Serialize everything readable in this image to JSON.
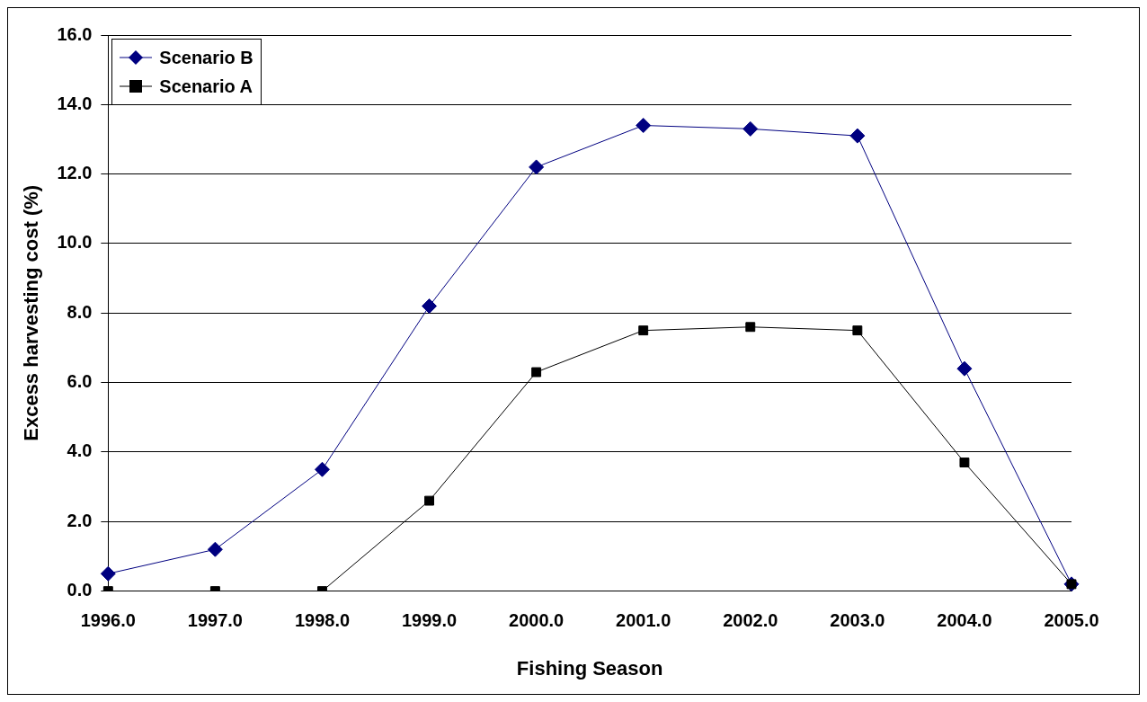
{
  "chart_data": {
    "type": "line",
    "xlabel": "Fishing Season",
    "ylabel": "Excess harvesting cost (%)",
    "categories": [
      "1996.0",
      "1997.0",
      "1998.0",
      "1999.0",
      "2000.0",
      "2001.0",
      "2002.0",
      "2003.0",
      "2004.0",
      "2005.0"
    ],
    "series": [
      {
        "name": "Scenario B",
        "color": "#000080",
        "marker": "diamond",
        "values": [
          0.5,
          1.2,
          3.5,
          8.2,
          12.2,
          13.4,
          13.3,
          13.1,
          6.4,
          0.2
        ]
      },
      {
        "name": "Scenario A",
        "color": "#000000",
        "marker": "square",
        "values": [
          0.0,
          0.0,
          0.0,
          2.6,
          6.3,
          7.5,
          7.6,
          7.5,
          3.7,
          0.2
        ]
      }
    ],
    "ylim": [
      0,
      16
    ],
    "yticks": [
      {
        "value": 0,
        "label": "0.0"
      },
      {
        "value": 2,
        "label": "2.0"
      },
      {
        "value": 4,
        "label": "4.0"
      },
      {
        "value": 6,
        "label": "6.0"
      },
      {
        "value": 8,
        "label": "8.0"
      },
      {
        "value": 10,
        "label": "10.0"
      },
      {
        "value": 12,
        "label": "12.0"
      },
      {
        "value": 14,
        "label": "14.0"
      },
      {
        "value": 16,
        "label": "16.0"
      }
    ],
    "grid": "y",
    "legend": "top left",
    "line_style": "solid"
  }
}
